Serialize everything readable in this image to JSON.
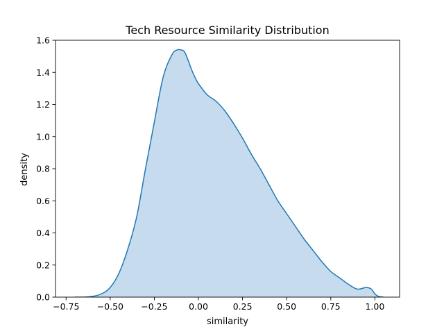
{
  "chart_data": {
    "type": "area",
    "title": "Tech Resource Similarity Distribution",
    "xlabel": "similarity",
    "ylabel": "density",
    "xlim": [
      -0.81,
      1.14
    ],
    "ylim": [
      0,
      1.6
    ],
    "x_ticks": [
      -0.75,
      -0.5,
      -0.25,
      0.0,
      0.25,
      0.5,
      0.75,
      1.0
    ],
    "x_tick_labels": [
      "−0.75",
      "−0.50",
      "−0.25",
      "0.00",
      "0.25",
      "0.50",
      "0.75",
      "1.00"
    ],
    "y_ticks": [
      0.0,
      0.2,
      0.4,
      0.6,
      0.8,
      1.0,
      1.2,
      1.4,
      1.6
    ],
    "y_tick_labels": [
      "0.0",
      "0.2",
      "0.4",
      "0.6",
      "0.8",
      "1.0",
      "1.2",
      "1.4",
      "1.6"
    ],
    "grid": false,
    "line_color": "#1f77b4",
    "fill_color": "#c6dbed",
    "x": [
      -0.7,
      -0.65,
      -0.6,
      -0.55,
      -0.5,
      -0.45,
      -0.4,
      -0.35,
      -0.3,
      -0.25,
      -0.2,
      -0.15,
      -0.12,
      -0.1,
      -0.08,
      -0.06,
      -0.04,
      -0.02,
      0.0,
      0.05,
      0.1,
      0.15,
      0.2,
      0.25,
      0.3,
      0.35,
      0.4,
      0.45,
      0.5,
      0.55,
      0.6,
      0.65,
      0.7,
      0.75,
      0.8,
      0.85,
      0.9,
      0.95,
      0.98,
      1.0,
      1.02,
      1.05
    ],
    "y": [
      0.0,
      0.0,
      0.005,
      0.02,
      0.06,
      0.15,
      0.3,
      0.5,
      0.8,
      1.09,
      1.37,
      1.51,
      1.54,
      1.54,
      1.53,
      1.48,
      1.42,
      1.37,
      1.33,
      1.26,
      1.22,
      1.16,
      1.08,
      0.99,
      0.89,
      0.8,
      0.7,
      0.6,
      0.52,
      0.44,
      0.36,
      0.29,
      0.22,
      0.16,
      0.12,
      0.08,
      0.05,
      0.06,
      0.05,
      0.02,
      0.005,
      0.0
    ]
  }
}
